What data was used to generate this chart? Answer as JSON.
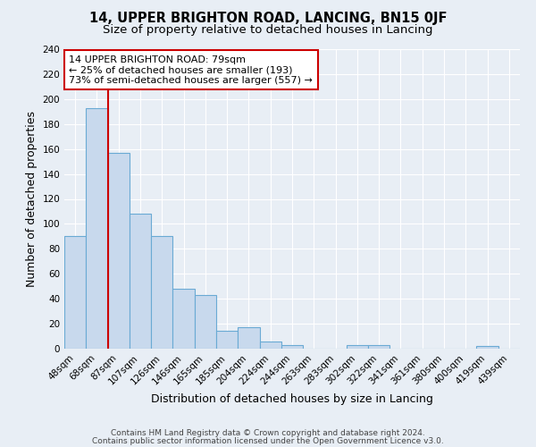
{
  "title": "14, UPPER BRIGHTON ROAD, LANCING, BN15 0JF",
  "subtitle": "Size of property relative to detached houses in Lancing",
  "xlabel": "Distribution of detached houses by size in Lancing",
  "ylabel": "Number of detached properties",
  "bar_labels": [
    "48sqm",
    "68sqm",
    "87sqm",
    "107sqm",
    "126sqm",
    "146sqm",
    "165sqm",
    "185sqm",
    "204sqm",
    "224sqm",
    "244sqm",
    "263sqm",
    "283sqm",
    "302sqm",
    "322sqm",
    "341sqm",
    "361sqm",
    "380sqm",
    "400sqm",
    "419sqm",
    "439sqm"
  ],
  "bar_heights": [
    90,
    193,
    157,
    108,
    90,
    48,
    43,
    14,
    17,
    6,
    3,
    0,
    0,
    3,
    3,
    0,
    0,
    0,
    0,
    2,
    0
  ],
  "bar_color": "#c8d9ed",
  "bar_edge_color": "#6aaad4",
  "background_color": "#e8eef5",
  "grid_color": "#ffffff",
  "red_line_x": 1.5,
  "annotation_title": "14 UPPER BRIGHTON ROAD: 79sqm",
  "annotation_line1": "← 25% of detached houses are smaller (193)",
  "annotation_line2": "73% of semi-detached houses are larger (557) →",
  "annotation_box_facecolor": "#ffffff",
  "annotation_box_edge": "#cc0000",
  "ylim": [
    0,
    240
  ],
  "yticks": [
    0,
    20,
    40,
    60,
    80,
    100,
    120,
    140,
    160,
    180,
    200,
    220,
    240
  ],
  "footer1": "Contains HM Land Registry data © Crown copyright and database right 2024.",
  "footer2": "Contains public sector information licensed under the Open Government Licence v3.0.",
  "title_fontsize": 10.5,
  "subtitle_fontsize": 9.5,
  "label_fontsize": 9,
  "tick_fontsize": 7.5,
  "annotation_fontsize": 8,
  "footer_fontsize": 6.5
}
